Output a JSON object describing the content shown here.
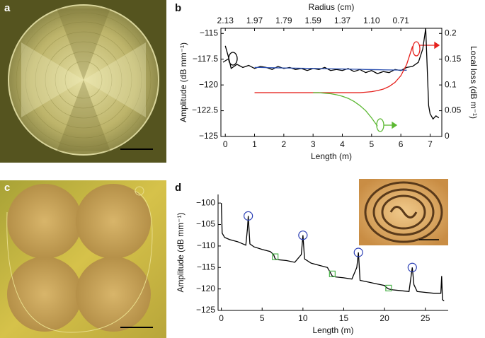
{
  "panels": [
    "a",
    "b",
    "c",
    "d"
  ],
  "chart_data": [
    {
      "type": "line",
      "box": true,
      "xlabel": "Length (m)",
      "ylabel": "Amplitude (dB mm⁻¹)",
      "y2label": "Local loss (dB m⁻¹)",
      "x2label": "Radius (cm)",
      "xlim": [
        -0.15,
        7.4
      ],
      "xticks": [
        0,
        1,
        2,
        3,
        4,
        5,
        6,
        7
      ],
      "x2ticks": [
        {
          "value": 0,
          "label": "2.13"
        },
        {
          "value": 1,
          "label": "1.97"
        },
        {
          "value": 2,
          "label": "1.79"
        },
        {
          "value": 3,
          "label": "1.59"
        },
        {
          "value": 4,
          "label": "1.37"
        },
        {
          "value": 5,
          "label": "1.10"
        },
        {
          "value": 6,
          "label": "0.71"
        }
      ],
      "ylim": [
        -125,
        -114.5
      ],
      "yticks": [
        {
          "value": -115,
          "label": "−115"
        },
        {
          "value": -117.5,
          "label": "−117.5"
        },
        {
          "value": -120,
          "label": "−120"
        },
        {
          "value": -122.5,
          "label": "−122.5"
        },
        {
          "value": -125,
          "label": "−125"
        }
      ],
      "y2lim": [
        0,
        0.21
      ],
      "y2ticks": [
        0,
        0.05,
        0.1,
        0.15,
        0.2
      ],
      "x": [
        0,
        0.1,
        0.2,
        0.4,
        0.6,
        0.8,
        1,
        1.2,
        1.4,
        1.6,
        1.8,
        2,
        2.2,
        2.4,
        2.6,
        2.8,
        3,
        3.2,
        3.4,
        3.6,
        3.8,
        4,
        4.2,
        4.4,
        4.6,
        4.8,
        5,
        5.2,
        5.4,
        5.6,
        5.8,
        6,
        6.2,
        6.4,
        6.6,
        6.75,
        6.85,
        6.95,
        7,
        7.1,
        7.2,
        7.3
      ],
      "series": [
        {
          "color": "#000000",
          "values": [
            -116.2,
            -117.2,
            -118.4,
            -118,
            -118.3,
            -118.1,
            -118.4,
            -118.2,
            -118.3,
            -118.5,
            -118.2,
            -118.4,
            -118.3,
            -118.5,
            -118.4,
            -118.6,
            -118.4,
            -118.5,
            -118.3,
            -118.6,
            -118.5,
            -118.6,
            -118.4,
            -118.7,
            -118.5,
            -118.8,
            -118.6,
            -118.9,
            -118.7,
            -118.8,
            -118.5,
            -118.6,
            -118.3,
            -118.2,
            -117.8,
            -116.5,
            -114.5,
            -122,
            -122.8,
            -123.3,
            -123,
            -123.2
          ]
        },
        {
          "color": "#2a4fb0",
          "values": [
            null,
            null,
            null,
            null,
            null,
            null,
            -118.3,
            -118.3,
            -118.32,
            -118.33,
            -118.34,
            -118.35,
            -118.36,
            -118.37,
            -118.38,
            -118.39,
            -118.4,
            -118.41,
            -118.42,
            -118.43,
            -118.44,
            -118.45,
            -118.46,
            -118.47,
            -118.48,
            -118.5,
            -118.51,
            -118.52,
            -118.53,
            -118.54,
            -118.55,
            -118.56,
            -118.57,
            null,
            null,
            null,
            null,
            null,
            null,
            null,
            null,
            null
          ]
        },
        {
          "color": "#e5201c",
          "axis": "y2",
          "values": [
            null,
            null,
            null,
            null,
            null,
            null,
            0.085,
            0.085,
            0.085,
            0.085,
            0.085,
            0.085,
            0.085,
            0.085,
            0.085,
            0.085,
            0.085,
            0.085,
            0.085,
            0.085,
            0.085,
            0.085,
            0.085,
            0.085,
            0.085,
            0.086,
            0.087,
            0.089,
            0.092,
            0.097,
            0.105,
            0.118,
            0.14,
            0.175,
            null,
            null,
            null,
            null,
            null,
            null,
            null,
            null
          ]
        },
        {
          "color": "#5cb833",
          "axis": "y2",
          "values": [
            null,
            null,
            null,
            null,
            null,
            null,
            null,
            null,
            null,
            null,
            null,
            null,
            null,
            null,
            null,
            null,
            0.085,
            0.085,
            0.084,
            0.083,
            0.081,
            0.078,
            0.074,
            0.068,
            0.06,
            0.05,
            0.036,
            0.02,
            null,
            null,
            null,
            null,
            null,
            null,
            null,
            null,
            null,
            null,
            null,
            null,
            null,
            null
          ]
        }
      ]
    },
    {
      "type": "line",
      "box": false,
      "xlabel": "Length (m)",
      "ylabel": "Amplitude (dB mm⁻¹)",
      "xlim": [
        -0.4,
        27.8
      ],
      "xticks": [
        0,
        5,
        10,
        15,
        20,
        25
      ],
      "ylim": [
        -125,
        -98
      ],
      "yticks": [
        {
          "value": -100,
          "label": "−100"
        },
        {
          "value": -105,
          "label": "−105"
        },
        {
          "value": -110,
          "label": "−110"
        },
        {
          "value": -115,
          "label": "−115"
        },
        {
          "value": -120,
          "label": "−120"
        },
        {
          "value": -125,
          "label": "−125"
        }
      ],
      "x": [
        0,
        0.1,
        0.4,
        1,
        2,
        3,
        3.2,
        3.3,
        3.5,
        4,
        5,
        6,
        6.4,
        6.6,
        7,
        8,
        9,
        9.8,
        10,
        10.2,
        11,
        12,
        13,
        13.3,
        13.6,
        14,
        15,
        16,
        16.6,
        16.8,
        17,
        18,
        19,
        20,
        20.2,
        20.5,
        21,
        22,
        23,
        23.4,
        23.6,
        24,
        25,
        26,
        26.9,
        27,
        27.1,
        27.3
      ],
      "series": [
        {
          "color": "#000000",
          "values": [
            -100,
            -107,
            -108,
            -108.5,
            -109,
            -109.8,
            -106,
            -103,
            -109.5,
            -110.2,
            -110.8,
            -111.3,
            -112,
            -113,
            -113.2,
            -113.4,
            -113.8,
            -112,
            -107.5,
            -113,
            -114,
            -114.5,
            -115,
            -116,
            -117,
            -117.2,
            -117.4,
            -117.7,
            -115,
            -111.5,
            -118,
            -118.4,
            -118.8,
            -119.2,
            -119.6,
            -120,
            -120.2,
            -120.4,
            -120.6,
            -115,
            -119,
            -120.6,
            -120.8,
            -121,
            -121,
            -117,
            -122.5,
            -122.8
          ]
        },
        {
          "color": "#2b3fb5",
          "marker": "circle",
          "x": [
            3.3,
            10,
            16.8,
            23.4
          ],
          "values": [
            -103,
            -107.5,
            -111.5,
            -115
          ]
        },
        {
          "color": "#4db34d",
          "marker": "square",
          "x": [
            6.6,
            13.6,
            20.5
          ],
          "values": [
            -112.5,
            -116.5,
            -119.8
          ]
        }
      ]
    }
  ]
}
